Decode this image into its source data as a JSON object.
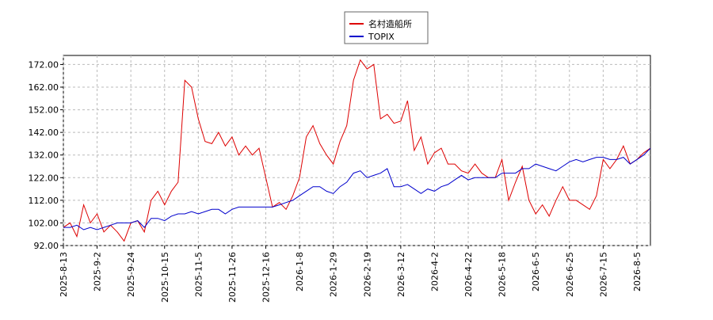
{
  "chart_data": {
    "type": "line",
    "categories": [
      "2025-8-13",
      null,
      null,
      null,
      null,
      "2025-9-2",
      null,
      null,
      null,
      null,
      "2025-9-24",
      null,
      null,
      null,
      null,
      "2025-10-15",
      null,
      null,
      null,
      null,
      "2025-11-5",
      null,
      null,
      null,
      null,
      "2025-11-26",
      null,
      null,
      null,
      null,
      "2025-12-16",
      null,
      null,
      null,
      null,
      "2026-1-8",
      null,
      null,
      null,
      null,
      "2026-1-29",
      null,
      null,
      null,
      null,
      "2026-2-19",
      null,
      null,
      null,
      null,
      "2026-3-12",
      null,
      null,
      null,
      null,
      "2026-4-2",
      null,
      null,
      null,
      null,
      "2026-4-22",
      null,
      null,
      null,
      null,
      "2026-5-18",
      null,
      null,
      null,
      null,
      "2026-6-5",
      null,
      null,
      null,
      null,
      "2026-6-25",
      null,
      null,
      null,
      null,
      "2026-7-15",
      null,
      null,
      null,
      null,
      "2026-8-5",
      null,
      null
    ],
    "series": [
      {
        "name": "名村造船所",
        "color": "#dd0000",
        "values": [
          100,
          102,
          96,
          110,
          102,
          106,
          98,
          101,
          98,
          94,
          102,
          103,
          98,
          112,
          116,
          110,
          116,
          120,
          165,
          162,
          148,
          138,
          137,
          142,
          136,
          140,
          132,
          136,
          132,
          135,
          122,
          109,
          111,
          108,
          114,
          122,
          140,
          145,
          137,
          132,
          128,
          138,
          145,
          165,
          174,
          170,
          172,
          148,
          150,
          146,
          147,
          156,
          134,
          140,
          128,
          133,
          135,
          128,
          128,
          125,
          124,
          128,
          124,
          122,
          122,
          130,
          112,
          120,
          127,
          112,
          106,
          110,
          105,
          112,
          118,
          112,
          112,
          110,
          108,
          114,
          130,
          126,
          130,
          136,
          128,
          130,
          133,
          135
        ]
      },
      {
        "name": "TOPIX",
        "color": "#0000cc",
        "values": [
          100,
          100,
          101,
          99,
          100,
          99,
          100,
          101,
          102,
          102,
          102,
          103,
          100,
          104,
          104,
          103,
          105,
          106,
          106,
          107,
          106,
          107,
          108,
          108,
          106,
          108,
          109,
          109,
          109,
          109,
          109,
          109,
          110,
          111,
          112,
          114,
          116,
          118,
          118,
          116,
          115,
          118,
          120,
          124,
          125,
          122,
          123,
          124,
          126,
          118,
          118,
          119,
          117,
          115,
          117,
          116,
          118,
          119,
          121,
          123,
          121,
          122,
          122,
          122,
          122,
          124,
          124,
          124,
          126,
          126,
          128,
          127,
          126,
          125,
          127,
          129,
          130,
          129,
          130,
          131,
          131,
          130,
          130,
          131,
          128,
          130,
          132,
          135
        ]
      }
    ],
    "ylim": [
      92,
      176
    ],
    "yticks": [
      {
        "value": 92,
        "label": "92.00"
      },
      {
        "value": 102,
        "label": "102.00"
      },
      {
        "value": 112,
        "label": "112.00"
      },
      {
        "value": 122,
        "label": "122.00"
      },
      {
        "value": 132,
        "label": "132.00"
      },
      {
        "value": 142,
        "label": "142.00"
      },
      {
        "value": 152,
        "label": "152.00"
      },
      {
        "value": 162,
        "label": "162.00"
      },
      {
        "value": 172,
        "label": "172.00"
      }
    ],
    "grid": true
  }
}
